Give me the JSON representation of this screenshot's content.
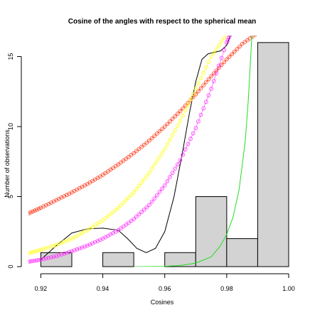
{
  "chart_data": {
    "type": "bar",
    "title": "Cosine of the angles with respect to the spherical mean",
    "xlabel": "Cosines",
    "ylabel": "Number of observations",
    "xlim": [
      0.916,
      1.0
    ],
    "ylim": [
      0,
      16.5
    ],
    "xticks": [
      "0.92",
      "0.94",
      "0.96",
      "0.98",
      "1.00"
    ],
    "yticks": [
      "0",
      "5",
      "10",
      "15"
    ],
    "grid": false,
    "histogram": {
      "bin_edges": [
        0.92,
        0.93,
        0.94,
        0.95,
        0.96,
        0.97,
        0.98,
        0.99,
        1.0
      ],
      "counts": [
        1,
        0,
        1,
        0,
        1,
        5,
        2,
        16
      ],
      "fill": "#d3d3d3",
      "stroke": "#000000"
    },
    "series": [
      {
        "color": "#000000",
        "style": "line",
        "points": [
          [
            0.92,
            0.5
          ],
          [
            0.925,
            1.5
          ],
          [
            0.93,
            2.4
          ],
          [
            0.935,
            2.7
          ],
          [
            0.94,
            2.75
          ],
          [
            0.945,
            2.6
          ],
          [
            0.948,
            2.0
          ],
          [
            0.951,
            1.3
          ],
          [
            0.954,
            1.0
          ],
          [
            0.957,
            1.3
          ],
          [
            0.96,
            2.5
          ],
          [
            0.963,
            5.0
          ],
          [
            0.966,
            8.5
          ],
          [
            0.968,
            11.0
          ],
          [
            0.97,
            13.2
          ],
          [
            0.972,
            14.8
          ],
          [
            0.974,
            15.2
          ],
          [
            0.976,
            15.3
          ],
          [
            0.978,
            15.4
          ],
          [
            0.98,
            15.8
          ],
          [
            0.982,
            17.0
          ]
        ]
      },
      {
        "color": "#ff3a1a",
        "style": "points",
        "points": [
          [
            0.916,
            3.8
          ],
          [
            0.92,
            4.2
          ],
          [
            0.925,
            4.75
          ],
          [
            0.93,
            5.3
          ],
          [
            0.935,
            5.9
          ],
          [
            0.94,
            6.55
          ],
          [
            0.945,
            7.3
          ],
          [
            0.95,
            8.1
          ],
          [
            0.955,
            9.0
          ],
          [
            0.96,
            10.0
          ],
          [
            0.965,
            11.1
          ],
          [
            0.97,
            12.3
          ],
          [
            0.975,
            13.6
          ],
          [
            0.98,
            14.8
          ],
          [
            0.985,
            15.9
          ],
          [
            0.99,
            16.7
          ]
        ]
      },
      {
        "color": "#ffff22",
        "style": "points",
        "points": [
          [
            0.916,
            0.95
          ],
          [
            0.92,
            1.2
          ],
          [
            0.925,
            1.55
          ],
          [
            0.93,
            2.0
          ],
          [
            0.935,
            2.6
          ],
          [
            0.94,
            3.3
          ],
          [
            0.945,
            4.2
          ],
          [
            0.95,
            5.3
          ],
          [
            0.955,
            6.7
          ],
          [
            0.96,
            8.4
          ],
          [
            0.965,
            10.4
          ],
          [
            0.97,
            12.7
          ],
          [
            0.975,
            15.0
          ],
          [
            0.98,
            16.6
          ]
        ]
      },
      {
        "color": "#ff33ff",
        "style": "points",
        "points": [
          [
            0.916,
            0.35
          ],
          [
            0.92,
            0.5
          ],
          [
            0.925,
            0.75
          ],
          [
            0.93,
            1.1
          ],
          [
            0.935,
            1.5
          ],
          [
            0.94,
            2.0
          ],
          [
            0.945,
            2.6
          ],
          [
            0.95,
            3.4
          ],
          [
            0.955,
            4.4
          ],
          [
            0.96,
            5.8
          ],
          [
            0.965,
            7.6
          ],
          [
            0.97,
            9.9
          ],
          [
            0.975,
            12.7
          ],
          [
            0.98,
            16.0
          ],
          [
            0.982,
            17.0
          ]
        ]
      },
      {
        "color": "#22dd22",
        "style": "line",
        "points": [
          [
            0.95,
            0.0
          ],
          [
            0.96,
            0.02
          ],
          [
            0.965,
            0.08
          ],
          [
            0.97,
            0.25
          ],
          [
            0.975,
            0.7
          ],
          [
            0.978,
            1.5
          ],
          [
            0.98,
            2.3
          ],
          [
            0.982,
            3.5
          ],
          [
            0.984,
            5.5
          ],
          [
            0.986,
            9.0
          ],
          [
            0.987,
            12.0
          ],
          [
            0.988,
            16.0
          ],
          [
            0.9885,
            17.0
          ]
        ]
      }
    ]
  }
}
